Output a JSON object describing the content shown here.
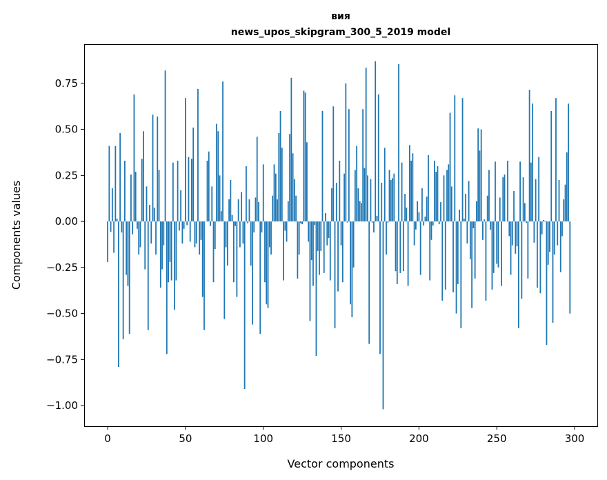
{
  "chart_data": {
    "type": "bar",
    "title_line1": "вия",
    "title_line2": "news_upos_skipgram_300_5_2019 model",
    "xlabel": "Vector components",
    "ylabel": "Components values",
    "xlim": [
      -15.1,
      314.6
    ],
    "ylim": [
      -1.112,
      0.963
    ],
    "xticks": [
      0,
      50,
      100,
      150,
      200,
      250,
      300
    ],
    "xtick_labels": [
      "0",
      "50",
      "100",
      "150",
      "200",
      "250",
      "300"
    ],
    "yticks": [
      0.75,
      0.5,
      0.25,
      0.0,
      -0.25,
      -0.5,
      -0.75,
      -1.0
    ],
    "ytick_labels": [
      "0.75",
      "0.50",
      "0.25",
      "0.00",
      "−0.25",
      "−0.50",
      "−0.75",
      "−1.00"
    ],
    "grid": false,
    "bar_width": 0.8,
    "color": "#1f77b4",
    "values": [
      -0.22,
      0.41,
      -0.056,
      0.18,
      -0.17,
      0.41,
      0.015,
      -0.79,
      0.48,
      -0.06,
      -0.64,
      0.33,
      -0.29,
      -0.35,
      -0.61,
      0.255,
      -0.07,
      0.69,
      0.27,
      -0.04,
      -0.18,
      -0.14,
      0.34,
      0.49,
      -0.26,
      0.19,
      -0.59,
      0.09,
      -0.12,
      0.58,
      0.075,
      -0.18,
      0.57,
      0.28,
      -0.36,
      -0.26,
      -0.13,
      0.82,
      -0.72,
      -0.33,
      -0.22,
      -0.32,
      0.32,
      -0.48,
      -0.32,
      0.33,
      -0.05,
      0.17,
      -0.12,
      -0.04,
      0.67,
      -0.02,
      0.35,
      -0.11,
      0.34,
      0.51,
      -0.14,
      -0.12,
      0.72,
      -0.18,
      -0.1,
      -0.41,
      -0.59,
      0.0,
      0.33,
      0.38,
      -0.025,
      0.19,
      -0.33,
      -0.15,
      0.53,
      0.49,
      0.25,
      0.056,
      0.76,
      -0.53,
      -0.14,
      -0.24,
      0.12,
      0.225,
      0.035,
      -0.33,
      -0.025,
      -0.41,
      0.12,
      -0.14,
      0.16,
      -0.12,
      -0.91,
      0.3,
      -0.01,
      0.12,
      -0.24,
      -0.56,
      -0.06,
      0.13,
      0.46,
      0.105,
      -0.61,
      -0.06,
      0.31,
      -0.33,
      -0.45,
      -0.47,
      -0.14,
      -0.18,
      0.14,
      0.31,
      0.26,
      0.12,
      0.48,
      0.6,
      0.4,
      -0.32,
      -0.05,
      -0.11,
      0.11,
      0.475,
      0.78,
      0.37,
      0.23,
      0.14,
      -0.31,
      -0.18,
      -0.01,
      -0.015,
      0.71,
      0.7,
      0.43,
      -0.11,
      -0.54,
      -0.21,
      -0.35,
      -0.02,
      -0.73,
      -0.16,
      -0.29,
      -0.16,
      0.6,
      -0.28,
      0.045,
      -0.13,
      -0.09,
      -0.32,
      0.18,
      0.625,
      -0.58,
      0.21,
      -0.38,
      0.33,
      -0.13,
      -0.33,
      0.26,
      0.75,
      -0.006,
      0.61,
      -0.45,
      -0.52,
      -0.25,
      0.28,
      0.41,
      0.18,
      0.11,
      0.1,
      0.61,
      0.29,
      0.835,
      0.25,
      -0.665,
      0.23,
      -0.006,
      -0.06,
      0.87,
      0.03,
      0.69,
      -0.72,
      0.21,
      -1.02,
      0.4,
      -0.18,
      -0.006,
      0.28,
      0.225,
      0.235,
      0.26,
      -0.27,
      -0.34,
      0.855,
      -0.28,
      0.32,
      -0.27,
      0.15,
      0.075,
      -0.35,
      0.415,
      0.33,
      0.37,
      -0.13,
      -0.044,
      0.11,
      0.05,
      -0.29,
      0.18,
      -0.022,
      0.026,
      0.135,
      0.36,
      -0.32,
      -0.1,
      -0.022,
      0.33,
      0.27,
      0.3,
      -0.015,
      0.105,
      -0.43,
      0.25,
      -0.37,
      0.28,
      0.31,
      0.59,
      0.19,
      -0.385,
      0.685,
      -0.5,
      -0.34,
      0.064,
      -0.58,
      0.67,
      0.015,
      0.15,
      -0.12,
      0.22,
      -0.205,
      -0.47,
      -0.037,
      -0.31,
      0.11,
      0.505,
      0.385,
      0.5,
      -0.1,
      0.011,
      -0.43,
      0.14,
      0.28,
      -0.045,
      -0.37,
      -0.28,
      0.325,
      -0.23,
      -0.25,
      0.13,
      -0.35,
      0.24,
      0.255,
      0.0,
      0.33,
      -0.08,
      -0.29,
      -0.13,
      0.165,
      -0.175,
      -0.135,
      -0.58,
      0.325,
      -0.42,
      0.24,
      0.1,
      -0.008,
      -0.31,
      0.715,
      0.32,
      0.64,
      -0.115,
      0.23,
      -0.36,
      0.35,
      -0.39,
      -0.07,
      0.008,
      0.004,
      -0.67,
      -0.235,
      -0.165,
      0.6,
      -0.55,
      -0.18,
      0.67,
      -0.13,
      0.225,
      -0.275,
      -0.08,
      0.12,
      0.2,
      0.375,
      0.64,
      -0.5
    ]
  }
}
